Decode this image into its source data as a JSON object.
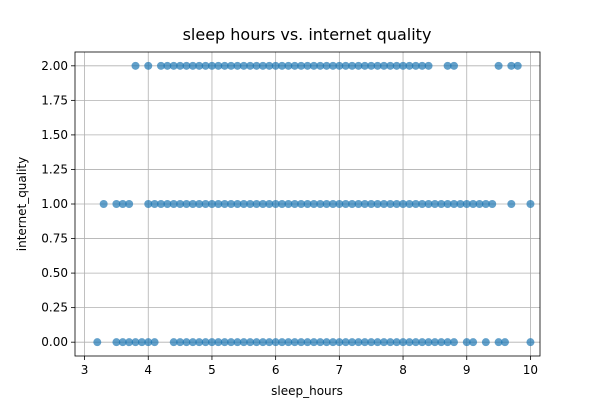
{
  "chart_data": {
    "type": "scatter",
    "title": "sleep hours vs. internet quality",
    "xlabel": "sleep_hours",
    "ylabel": "internet_quality",
    "xlim": [
      2.85,
      10.15
    ],
    "ylim": [
      -0.1,
      2.1
    ],
    "xticks": [
      3,
      4,
      5,
      6,
      7,
      8,
      9,
      10
    ],
    "xtick_labels": [
      "3",
      "4",
      "5",
      "6",
      "7",
      "8",
      "9",
      "10"
    ],
    "yticks": [
      0,
      0.25,
      0.5,
      0.75,
      1,
      1.25,
      1.5,
      1.75,
      2
    ],
    "ytick_labels": [
      "0.00",
      "0.25",
      "0.50",
      "0.75",
      "1.00",
      "1.25",
      "1.50",
      "1.75",
      "2.00"
    ],
    "grid": true,
    "marker_color": "#1f77b4",
    "marker_alpha": 0.7,
    "points": [
      {
        "x": 3.8,
        "y": 2
      },
      {
        "x": 4.0,
        "y": 2
      },
      {
        "x": 4.2,
        "y": 2
      },
      {
        "x": 4.3,
        "y": 2
      },
      {
        "x": 4.4,
        "y": 2
      },
      {
        "x": 4.5,
        "y": 2
      },
      {
        "x": 4.6,
        "y": 2
      },
      {
        "x": 4.7,
        "y": 2
      },
      {
        "x": 4.8,
        "y": 2
      },
      {
        "x": 4.9,
        "y": 2
      },
      {
        "x": 5.0,
        "y": 2
      },
      {
        "x": 5.1,
        "y": 2
      },
      {
        "x": 5.2,
        "y": 2
      },
      {
        "x": 5.3,
        "y": 2
      },
      {
        "x": 5.4,
        "y": 2
      },
      {
        "x": 5.5,
        "y": 2
      },
      {
        "x": 5.6,
        "y": 2
      },
      {
        "x": 5.7,
        "y": 2
      },
      {
        "x": 5.8,
        "y": 2
      },
      {
        "x": 5.9,
        "y": 2
      },
      {
        "x": 6.0,
        "y": 2
      },
      {
        "x": 6.1,
        "y": 2
      },
      {
        "x": 6.2,
        "y": 2
      },
      {
        "x": 6.3,
        "y": 2
      },
      {
        "x": 6.4,
        "y": 2
      },
      {
        "x": 6.5,
        "y": 2
      },
      {
        "x": 6.6,
        "y": 2
      },
      {
        "x": 6.7,
        "y": 2
      },
      {
        "x": 6.8,
        "y": 2
      },
      {
        "x": 6.9,
        "y": 2
      },
      {
        "x": 7.0,
        "y": 2
      },
      {
        "x": 7.1,
        "y": 2
      },
      {
        "x": 7.2,
        "y": 2
      },
      {
        "x": 7.3,
        "y": 2
      },
      {
        "x": 7.4,
        "y": 2
      },
      {
        "x": 7.5,
        "y": 2
      },
      {
        "x": 7.6,
        "y": 2
      },
      {
        "x": 7.7,
        "y": 2
      },
      {
        "x": 7.8,
        "y": 2
      },
      {
        "x": 7.9,
        "y": 2
      },
      {
        "x": 8.0,
        "y": 2
      },
      {
        "x": 8.1,
        "y": 2
      },
      {
        "x": 8.2,
        "y": 2
      },
      {
        "x": 8.3,
        "y": 2
      },
      {
        "x": 8.4,
        "y": 2
      },
      {
        "x": 8.7,
        "y": 2
      },
      {
        "x": 8.8,
        "y": 2
      },
      {
        "x": 9.5,
        "y": 2
      },
      {
        "x": 9.7,
        "y": 2
      },
      {
        "x": 9.8,
        "y": 2
      },
      {
        "x": 3.3,
        "y": 1
      },
      {
        "x": 3.5,
        "y": 1
      },
      {
        "x": 3.6,
        "y": 1
      },
      {
        "x": 3.7,
        "y": 1
      },
      {
        "x": 4.0,
        "y": 1
      },
      {
        "x": 4.1,
        "y": 1
      },
      {
        "x": 4.2,
        "y": 1
      },
      {
        "x": 4.3,
        "y": 1
      },
      {
        "x": 4.4,
        "y": 1
      },
      {
        "x": 4.5,
        "y": 1
      },
      {
        "x": 4.6,
        "y": 1
      },
      {
        "x": 4.7,
        "y": 1
      },
      {
        "x": 4.8,
        "y": 1
      },
      {
        "x": 4.9,
        "y": 1
      },
      {
        "x": 5.0,
        "y": 1
      },
      {
        "x": 5.1,
        "y": 1
      },
      {
        "x": 5.2,
        "y": 1
      },
      {
        "x": 5.3,
        "y": 1
      },
      {
        "x": 5.4,
        "y": 1
      },
      {
        "x": 5.5,
        "y": 1
      },
      {
        "x": 5.6,
        "y": 1
      },
      {
        "x": 5.7,
        "y": 1
      },
      {
        "x": 5.8,
        "y": 1
      },
      {
        "x": 5.9,
        "y": 1
      },
      {
        "x": 6.0,
        "y": 1
      },
      {
        "x": 6.1,
        "y": 1
      },
      {
        "x": 6.2,
        "y": 1
      },
      {
        "x": 6.3,
        "y": 1
      },
      {
        "x": 6.4,
        "y": 1
      },
      {
        "x": 6.5,
        "y": 1
      },
      {
        "x": 6.6,
        "y": 1
      },
      {
        "x": 6.7,
        "y": 1
      },
      {
        "x": 6.8,
        "y": 1
      },
      {
        "x": 6.9,
        "y": 1
      },
      {
        "x": 7.0,
        "y": 1
      },
      {
        "x": 7.1,
        "y": 1
      },
      {
        "x": 7.2,
        "y": 1
      },
      {
        "x": 7.3,
        "y": 1
      },
      {
        "x": 7.4,
        "y": 1
      },
      {
        "x": 7.5,
        "y": 1
      },
      {
        "x": 7.6,
        "y": 1
      },
      {
        "x": 7.7,
        "y": 1
      },
      {
        "x": 7.8,
        "y": 1
      },
      {
        "x": 7.9,
        "y": 1
      },
      {
        "x": 8.0,
        "y": 1
      },
      {
        "x": 8.1,
        "y": 1
      },
      {
        "x": 8.2,
        "y": 1
      },
      {
        "x": 8.3,
        "y": 1
      },
      {
        "x": 8.4,
        "y": 1
      },
      {
        "x": 8.5,
        "y": 1
      },
      {
        "x": 8.6,
        "y": 1
      },
      {
        "x": 8.7,
        "y": 1
      },
      {
        "x": 8.8,
        "y": 1
      },
      {
        "x": 8.9,
        "y": 1
      },
      {
        "x": 9.0,
        "y": 1
      },
      {
        "x": 9.1,
        "y": 1
      },
      {
        "x": 9.2,
        "y": 1
      },
      {
        "x": 9.3,
        "y": 1
      },
      {
        "x": 9.4,
        "y": 1
      },
      {
        "x": 9.7,
        "y": 1
      },
      {
        "x": 10.0,
        "y": 1
      },
      {
        "x": 3.2,
        "y": 0
      },
      {
        "x": 3.5,
        "y": 0
      },
      {
        "x": 3.6,
        "y": 0
      },
      {
        "x": 3.7,
        "y": 0
      },
      {
        "x": 3.8,
        "y": 0
      },
      {
        "x": 3.9,
        "y": 0
      },
      {
        "x": 4.0,
        "y": 0
      },
      {
        "x": 4.1,
        "y": 0
      },
      {
        "x": 4.4,
        "y": 0
      },
      {
        "x": 4.5,
        "y": 0
      },
      {
        "x": 4.6,
        "y": 0
      },
      {
        "x": 4.7,
        "y": 0
      },
      {
        "x": 4.8,
        "y": 0
      },
      {
        "x": 4.9,
        "y": 0
      },
      {
        "x": 5.0,
        "y": 0
      },
      {
        "x": 5.1,
        "y": 0
      },
      {
        "x": 5.2,
        "y": 0
      },
      {
        "x": 5.3,
        "y": 0
      },
      {
        "x": 5.4,
        "y": 0
      },
      {
        "x": 5.5,
        "y": 0
      },
      {
        "x": 5.6,
        "y": 0
      },
      {
        "x": 5.7,
        "y": 0
      },
      {
        "x": 5.8,
        "y": 0
      },
      {
        "x": 5.9,
        "y": 0
      },
      {
        "x": 6.0,
        "y": 0
      },
      {
        "x": 6.1,
        "y": 0
      },
      {
        "x": 6.2,
        "y": 0
      },
      {
        "x": 6.3,
        "y": 0
      },
      {
        "x": 6.4,
        "y": 0
      },
      {
        "x": 6.5,
        "y": 0
      },
      {
        "x": 6.6,
        "y": 0
      },
      {
        "x": 6.7,
        "y": 0
      },
      {
        "x": 6.8,
        "y": 0
      },
      {
        "x": 6.9,
        "y": 0
      },
      {
        "x": 7.0,
        "y": 0
      },
      {
        "x": 7.1,
        "y": 0
      },
      {
        "x": 7.2,
        "y": 0
      },
      {
        "x": 7.3,
        "y": 0
      },
      {
        "x": 7.4,
        "y": 0
      },
      {
        "x": 7.5,
        "y": 0
      },
      {
        "x": 7.6,
        "y": 0
      },
      {
        "x": 7.7,
        "y": 0
      },
      {
        "x": 7.8,
        "y": 0
      },
      {
        "x": 7.9,
        "y": 0
      },
      {
        "x": 8.0,
        "y": 0
      },
      {
        "x": 8.1,
        "y": 0
      },
      {
        "x": 8.2,
        "y": 0
      },
      {
        "x": 8.3,
        "y": 0
      },
      {
        "x": 8.4,
        "y": 0
      },
      {
        "x": 8.5,
        "y": 0
      },
      {
        "x": 8.6,
        "y": 0
      },
      {
        "x": 8.7,
        "y": 0
      },
      {
        "x": 8.8,
        "y": 0
      },
      {
        "x": 9.0,
        "y": 0
      },
      {
        "x": 9.1,
        "y": 0
      },
      {
        "x": 9.3,
        "y": 0
      },
      {
        "x": 9.5,
        "y": 0
      },
      {
        "x": 9.6,
        "y": 0
      },
      {
        "x": 10.0,
        "y": 0
      }
    ]
  }
}
